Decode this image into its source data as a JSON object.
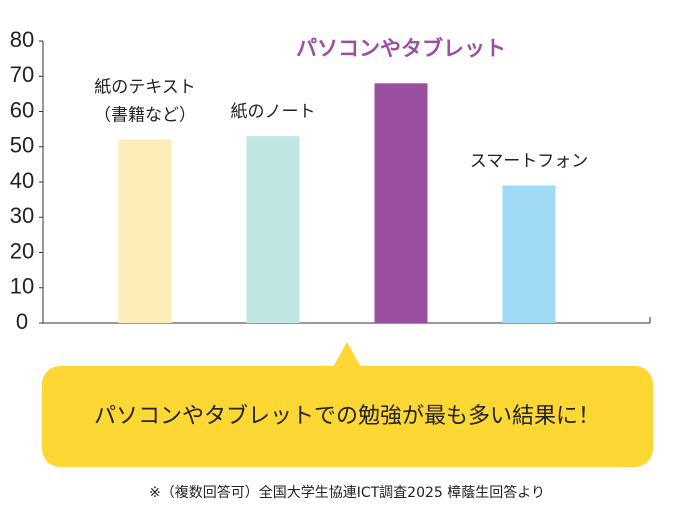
{
  "chart_data": {
    "type": "bar",
    "categories": [
      [
        "紙のテキスト",
        "（書籍など）"
      ],
      [
        "紙のノート"
      ],
      [
        "パソコンやタブレット"
      ],
      [
        "スマートフォン"
      ]
    ],
    "values": [
      52,
      53,
      68,
      39
    ],
    "colors": [
      "#fdeeb9",
      "#bfe6e2",
      "#9b4fa0",
      "#a1daf5"
    ],
    "label_colors": [
      "#222222",
      "#222222",
      "#9b4fa0",
      "#222222"
    ],
    "ylim": [
      0,
      80
    ],
    "yticks": [
      0,
      10,
      20,
      30,
      40,
      50,
      60,
      70,
      80
    ],
    "grid": false
  },
  "callout": "パソコンやタブレットでの勉強が最も多い結果に！",
  "footnote": "※（複数回答可）全国大学生協連ICT調査2025 樟蔭生回答より"
}
